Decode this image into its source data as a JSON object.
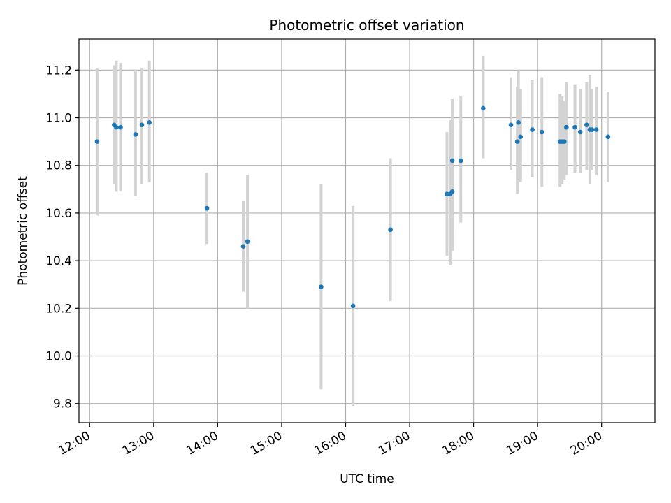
{
  "chart_data": {
    "type": "scatter",
    "title": "Photometric offset variation",
    "xlabel": "UTC time",
    "ylabel": "Photometric offset",
    "x_axis_type": "time",
    "xlim": [
      "11:50",
      "20:50"
    ],
    "ylim": [
      9.72,
      11.33
    ],
    "x_ticks": [
      "12:00",
      "13:00",
      "14:00",
      "15:00",
      "16:00",
      "17:00",
      "18:00",
      "19:00",
      "20:00"
    ],
    "y_ticks": [
      "9.8",
      "10.0",
      "10.2",
      "10.4",
      "10.6",
      "10.8",
      "11.0",
      "11.2"
    ],
    "grid": true,
    "legend": "none",
    "point_color": "#1f77b4",
    "errorbar_color": "#d3d3d3",
    "points": [
      {
        "x": "12:07",
        "y": 10.9,
        "err_low": 10.59,
        "err_high": 11.21
      },
      {
        "x": "12:23",
        "y": 10.97,
        "err_low": 10.72,
        "err_high": 11.22
      },
      {
        "x": "12:25",
        "y": 10.96,
        "err_low": 10.69,
        "err_high": 11.24
      },
      {
        "x": "12:29",
        "y": 10.96,
        "err_low": 10.69,
        "err_high": 11.23
      },
      {
        "x": "12:43",
        "y": 10.93,
        "err_low": 10.67,
        "err_high": 11.2
      },
      {
        "x": "12:49",
        "y": 10.97,
        "err_low": 10.72,
        "err_high": 11.21
      },
      {
        "x": "12:56",
        "y": 10.98,
        "err_low": 10.73,
        "err_high": 11.24
      },
      {
        "x": "13:50",
        "y": 10.62,
        "err_low": 10.47,
        "err_high": 10.77
      },
      {
        "x": "14:24",
        "y": 10.46,
        "err_low": 10.27,
        "err_high": 10.65
      },
      {
        "x": "14:28",
        "y": 10.48,
        "err_low": 10.2,
        "err_high": 10.76
      },
      {
        "x": "15:37",
        "y": 10.29,
        "err_low": 9.86,
        "err_high": 10.72
      },
      {
        "x": "16:07",
        "y": 10.21,
        "err_low": 9.79,
        "err_high": 10.63
      },
      {
        "x": "16:42",
        "y": 10.53,
        "err_low": 10.23,
        "err_high": 10.83
      },
      {
        "x": "17:35",
        "y": 10.68,
        "err_low": 10.42,
        "err_high": 10.94
      },
      {
        "x": "17:38",
        "y": 10.68,
        "err_low": 10.38,
        "err_high": 10.99
      },
      {
        "x": "17:40",
        "y": 10.69,
        "err_low": 10.44,
        "err_high": 10.95
      },
      {
        "x": "17:40",
        "y": 10.82,
        "err_low": 10.53,
        "err_high": 11.08
      },
      {
        "x": "17:48",
        "y": 10.82,
        "err_low": 10.56,
        "err_high": 11.09
      },
      {
        "x": "18:09",
        "y": 11.04,
        "err_low": 10.83,
        "err_high": 11.26
      },
      {
        "x": "18:35",
        "y": 10.97,
        "err_low": 10.78,
        "err_high": 11.17
      },
      {
        "x": "18:41",
        "y": 10.9,
        "err_low": 10.68,
        "err_high": 11.13
      },
      {
        "x": "18:42",
        "y": 10.98,
        "err_low": 10.74,
        "err_high": 11.2
      },
      {
        "x": "18:44",
        "y": 10.92,
        "err_low": 10.73,
        "err_high": 11.12
      },
      {
        "x": "18:55",
        "y": 10.95,
        "err_low": 10.75,
        "err_high": 11.16
      },
      {
        "x": "19:04",
        "y": 10.94,
        "err_low": 10.71,
        "err_high": 11.17
      },
      {
        "x": "19:21",
        "y": 10.9,
        "err_low": 10.71,
        "err_high": 11.1
      },
      {
        "x": "19:23",
        "y": 10.9,
        "err_low": 10.72,
        "err_high": 11.09
      },
      {
        "x": "19:25",
        "y": 10.9,
        "err_low": 10.74,
        "err_high": 11.07
      },
      {
        "x": "19:27",
        "y": 10.96,
        "err_low": 10.76,
        "err_high": 11.15
      },
      {
        "x": "19:35",
        "y": 10.96,
        "err_low": 10.77,
        "err_high": 11.14
      },
      {
        "x": "19:40",
        "y": 10.94,
        "err_low": 10.77,
        "err_high": 11.12
      },
      {
        "x": "19:46",
        "y": 10.97,
        "err_low": 10.78,
        "err_high": 11.15
      },
      {
        "x": "19:49",
        "y": 10.95,
        "err_low": 10.72,
        "err_high": 11.18
      },
      {
        "x": "19:51",
        "y": 10.95,
        "err_low": 10.78,
        "err_high": 11.12
      },
      {
        "x": "19:55",
        "y": 10.95,
        "err_low": 10.76,
        "err_high": 11.13
      },
      {
        "x": "20:06",
        "y": 10.92,
        "err_low": 10.73,
        "err_high": 11.11
      }
    ]
  }
}
